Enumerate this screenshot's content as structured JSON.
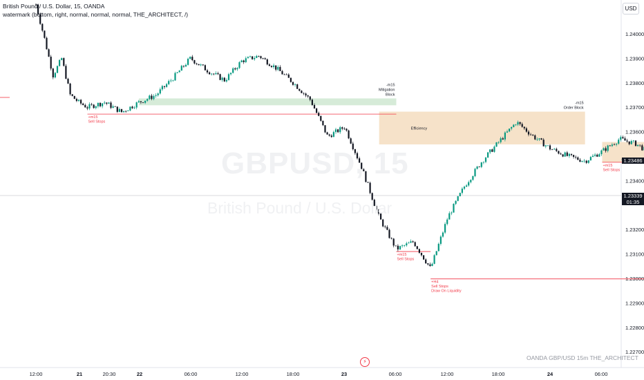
{
  "header": {
    "line1": "British Pound / U.S. Dollar, 15, OANDA",
    "line2": "watermark (bottom, right, normal, normal, normal, THE_ARCHITECT, /)"
  },
  "watermark": {
    "symbol": "GBPUSD, 15",
    "description": "British Pound / U.S. Dollar"
  },
  "currency_button": "USD",
  "footer_watermark": "OANDA  GBP/USD 15m  THE_ARCHITECT",
  "colors": {
    "up_candle": "#089981",
    "down_candle": "#131722",
    "sell_stops_line": "#f23645",
    "order_block_zone": "#f5ddc0",
    "mitigation_block_zone": "#cfe7d1",
    "projection_arrow": "#b2b5be"
  },
  "icons": {
    "lightning": "lightning-icon"
  },
  "chart_data": {
    "type": "candlestick",
    "symbol": "GBPUSD",
    "timeframe": "15",
    "exchange": "OANDA",
    "yaxis": {
      "ticks": [
        "1.24000",
        "1.23900",
        "1.23800",
        "1.23700",
        "1.23600",
        "1.23400",
        "1.23200",
        "1.23100",
        "1.23000",
        "1.22900",
        "1.22800",
        "1.22700"
      ],
      "range": [
        1.2268,
        1.2412
      ]
    },
    "xaxis": {
      "ticks": [
        "12:00",
        "21",
        "20:30",
        "22",
        "06:00",
        "12:00",
        "18:00",
        "23",
        "06:00",
        "12:00",
        "18:00",
        "24",
        "06:00"
      ]
    },
    "price_labels": [
      {
        "id": "level",
        "value": "1.23486"
      },
      {
        "id": "last",
        "value": "1.23339",
        "countdown": "01:35"
      }
    ],
    "close_path": [
      [
        "20 12:00",
        1.2412
      ],
      [
        "20 13:00",
        1.2398
      ],
      [
        "20 14:00",
        1.2383
      ],
      [
        "20 15:00",
        1.239
      ],
      [
        "20 16:00",
        1.2375
      ],
      [
        "20 17:00",
        1.2372
      ],
      [
        "20 18:00",
        1.237
      ],
      [
        "20 20:00",
        1.2372
      ],
      [
        "20 22:00",
        1.2368
      ],
      [
        "21 00:00",
        1.2372
      ],
      [
        "21 02:00",
        1.2375
      ],
      [
        "21 04:00",
        1.2382
      ],
      [
        "21 06:00",
        1.239
      ],
      [
        "21 08:00",
        1.2385
      ],
      [
        "21 10:00",
        1.2381
      ],
      [
        "21 12:00",
        1.2389
      ],
      [
        "21 14:00",
        1.2391
      ],
      [
        "21 16:00",
        1.2386
      ],
      [
        "21 18:00",
        1.238
      ],
      [
        "21 20:00",
        1.2373
      ],
      [
        "21 22:00",
        1.2358
      ],
      [
        "22 00:00",
        1.2362
      ],
      [
        "22 02:00",
        1.2345
      ],
      [
        "22 04:00",
        1.2325
      ],
      [
        "22 06:00",
        1.2312
      ],
      [
        "22 08:00",
        1.2315
      ],
      [
        "22 10:00",
        1.2304
      ],
      [
        "22 12:00",
        1.2325
      ],
      [
        "22 14:00",
        1.2338
      ],
      [
        "22 16:00",
        1.2348
      ],
      [
        "22 18:00",
        1.2356
      ],
      [
        "22 20:00",
        1.2364
      ],
      [
        "22 22:00",
        1.2358
      ],
      [
        "23 00:00",
        1.2353
      ],
      [
        "23 02:00",
        1.235
      ],
      [
        "23 04:00",
        1.2348
      ],
      [
        "23 06:00",
        1.2352
      ],
      [
        "23 08:00",
        1.2357
      ],
      [
        "23 10:00",
        1.2355
      ],
      [
        "23 12:00",
        1.235
      ],
      [
        "23 13:00",
        1.2344
      ],
      [
        "23 14:00",
        1.2336
      ]
    ],
    "zones": [
      {
        "name": "mitigation-block",
        "label": "-m15\nMitigation\nBlock",
        "from": "21 00:00",
        "to": "22 06:00",
        "top": 1.23736,
        "bottom": 1.23708,
        "color": "#cfe7d1"
      },
      {
        "name": "order-block-1",
        "label": "-m15\nOrder Block",
        "inner_label": "Efficiency",
        "from": "22 04:00",
        "to": "23 04:00",
        "top": 1.23682,
        "bottom": 1.23548,
        "color": "#f5ddc0"
      },
      {
        "name": "order-block-2",
        "label": "-m15\nOrder Block",
        "from": "23 06:00",
        "to": "23 16:00",
        "top": 1.23558,
        "bottom": 1.23476,
        "color": "#f5ddc0"
      }
    ],
    "levels": [
      {
        "name": "sell-stops-1",
        "label": "+m15\nSell Stops",
        "from": "20 18:00",
        "to": "22 06:00",
        "price": 1.23672,
        "color": "#f23645"
      },
      {
        "name": "sell-stops-2",
        "label": "+m15\nSell Stops",
        "from": "22 06:00",
        "to": "22 10:00",
        "price": 1.2311,
        "color": "#f23645"
      },
      {
        "name": "sell-stops-3",
        "label": "+m15\nSell Stops",
        "from": "23 06:00",
        "to": "23 10:00",
        "price": 1.23475,
        "color": "#f23645"
      },
      {
        "name": "draw-on-liquidity",
        "label": "+H4\nSell Stops\nDraw On Liquidity",
        "from": "22 10:00",
        "to": "24 12:00",
        "price": 1.22998,
        "color": "#f23645"
      }
    ],
    "projection": {
      "points": [
        [
          "23 14:00",
          1.234
        ],
        [
          "23 16:00",
          1.2354
        ],
        [
          "23 19:00",
          1.2301
        ]
      ],
      "color": "#b2b5be"
    }
  }
}
